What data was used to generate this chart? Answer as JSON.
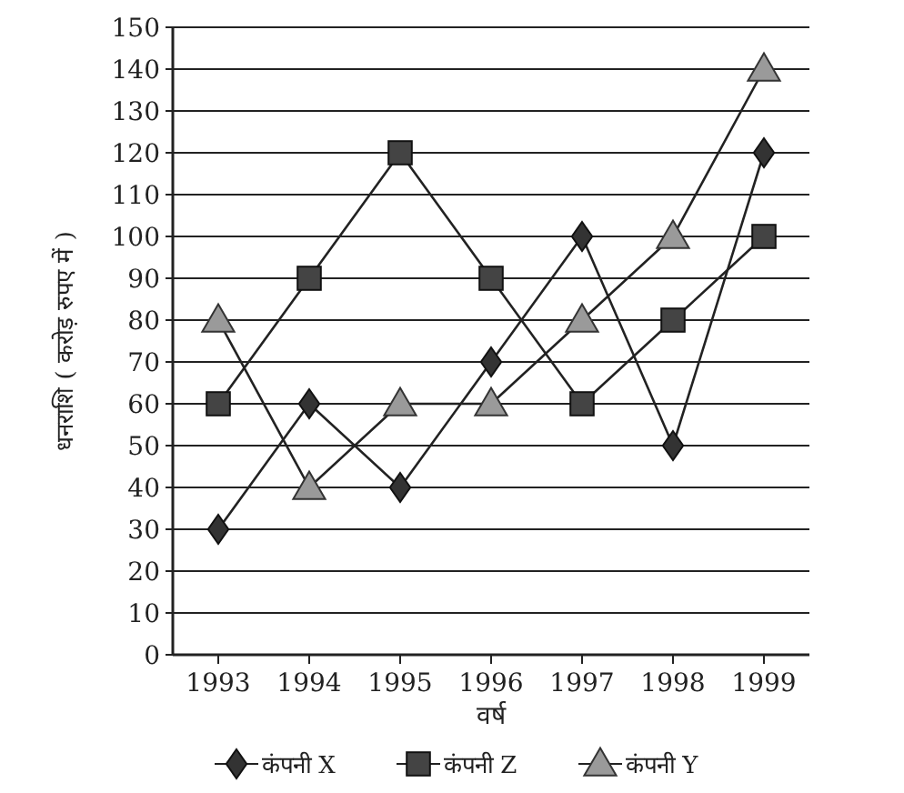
{
  "chart_data": {
    "type": "line",
    "xlabel": "वर्ष",
    "ylabel": "धनराशि ( करोड़ रुपए में )",
    "categories": [
      "1993",
      "1994",
      "1995",
      "1996",
      "1997",
      "1998",
      "1999"
    ],
    "series": [
      {
        "name": "कंपनी X",
        "color": "#333333",
        "marker": "diamond",
        "values": [
          30,
          60,
          40,
          70,
          100,
          50,
          120
        ]
      },
      {
        "name": "कंपनी Z",
        "color": "#444444",
        "marker": "square",
        "values": [
          60,
          90,
          120,
          90,
          60,
          80,
          100
        ]
      },
      {
        "name": "कंपनी Y",
        "color": "#9a9a9a",
        "marker": "triangle",
        "values": [
          80,
          40,
          60,
          60,
          80,
          100,
          140
        ]
      }
    ],
    "ylim": [
      0,
      150
    ],
    "yticks": [
      0,
      10,
      20,
      30,
      40,
      50,
      60,
      70,
      80,
      90,
      100,
      110,
      120,
      130,
      140,
      150
    ],
    "grid": "y",
    "legend": "bottom",
    "line_style": "solid"
  }
}
